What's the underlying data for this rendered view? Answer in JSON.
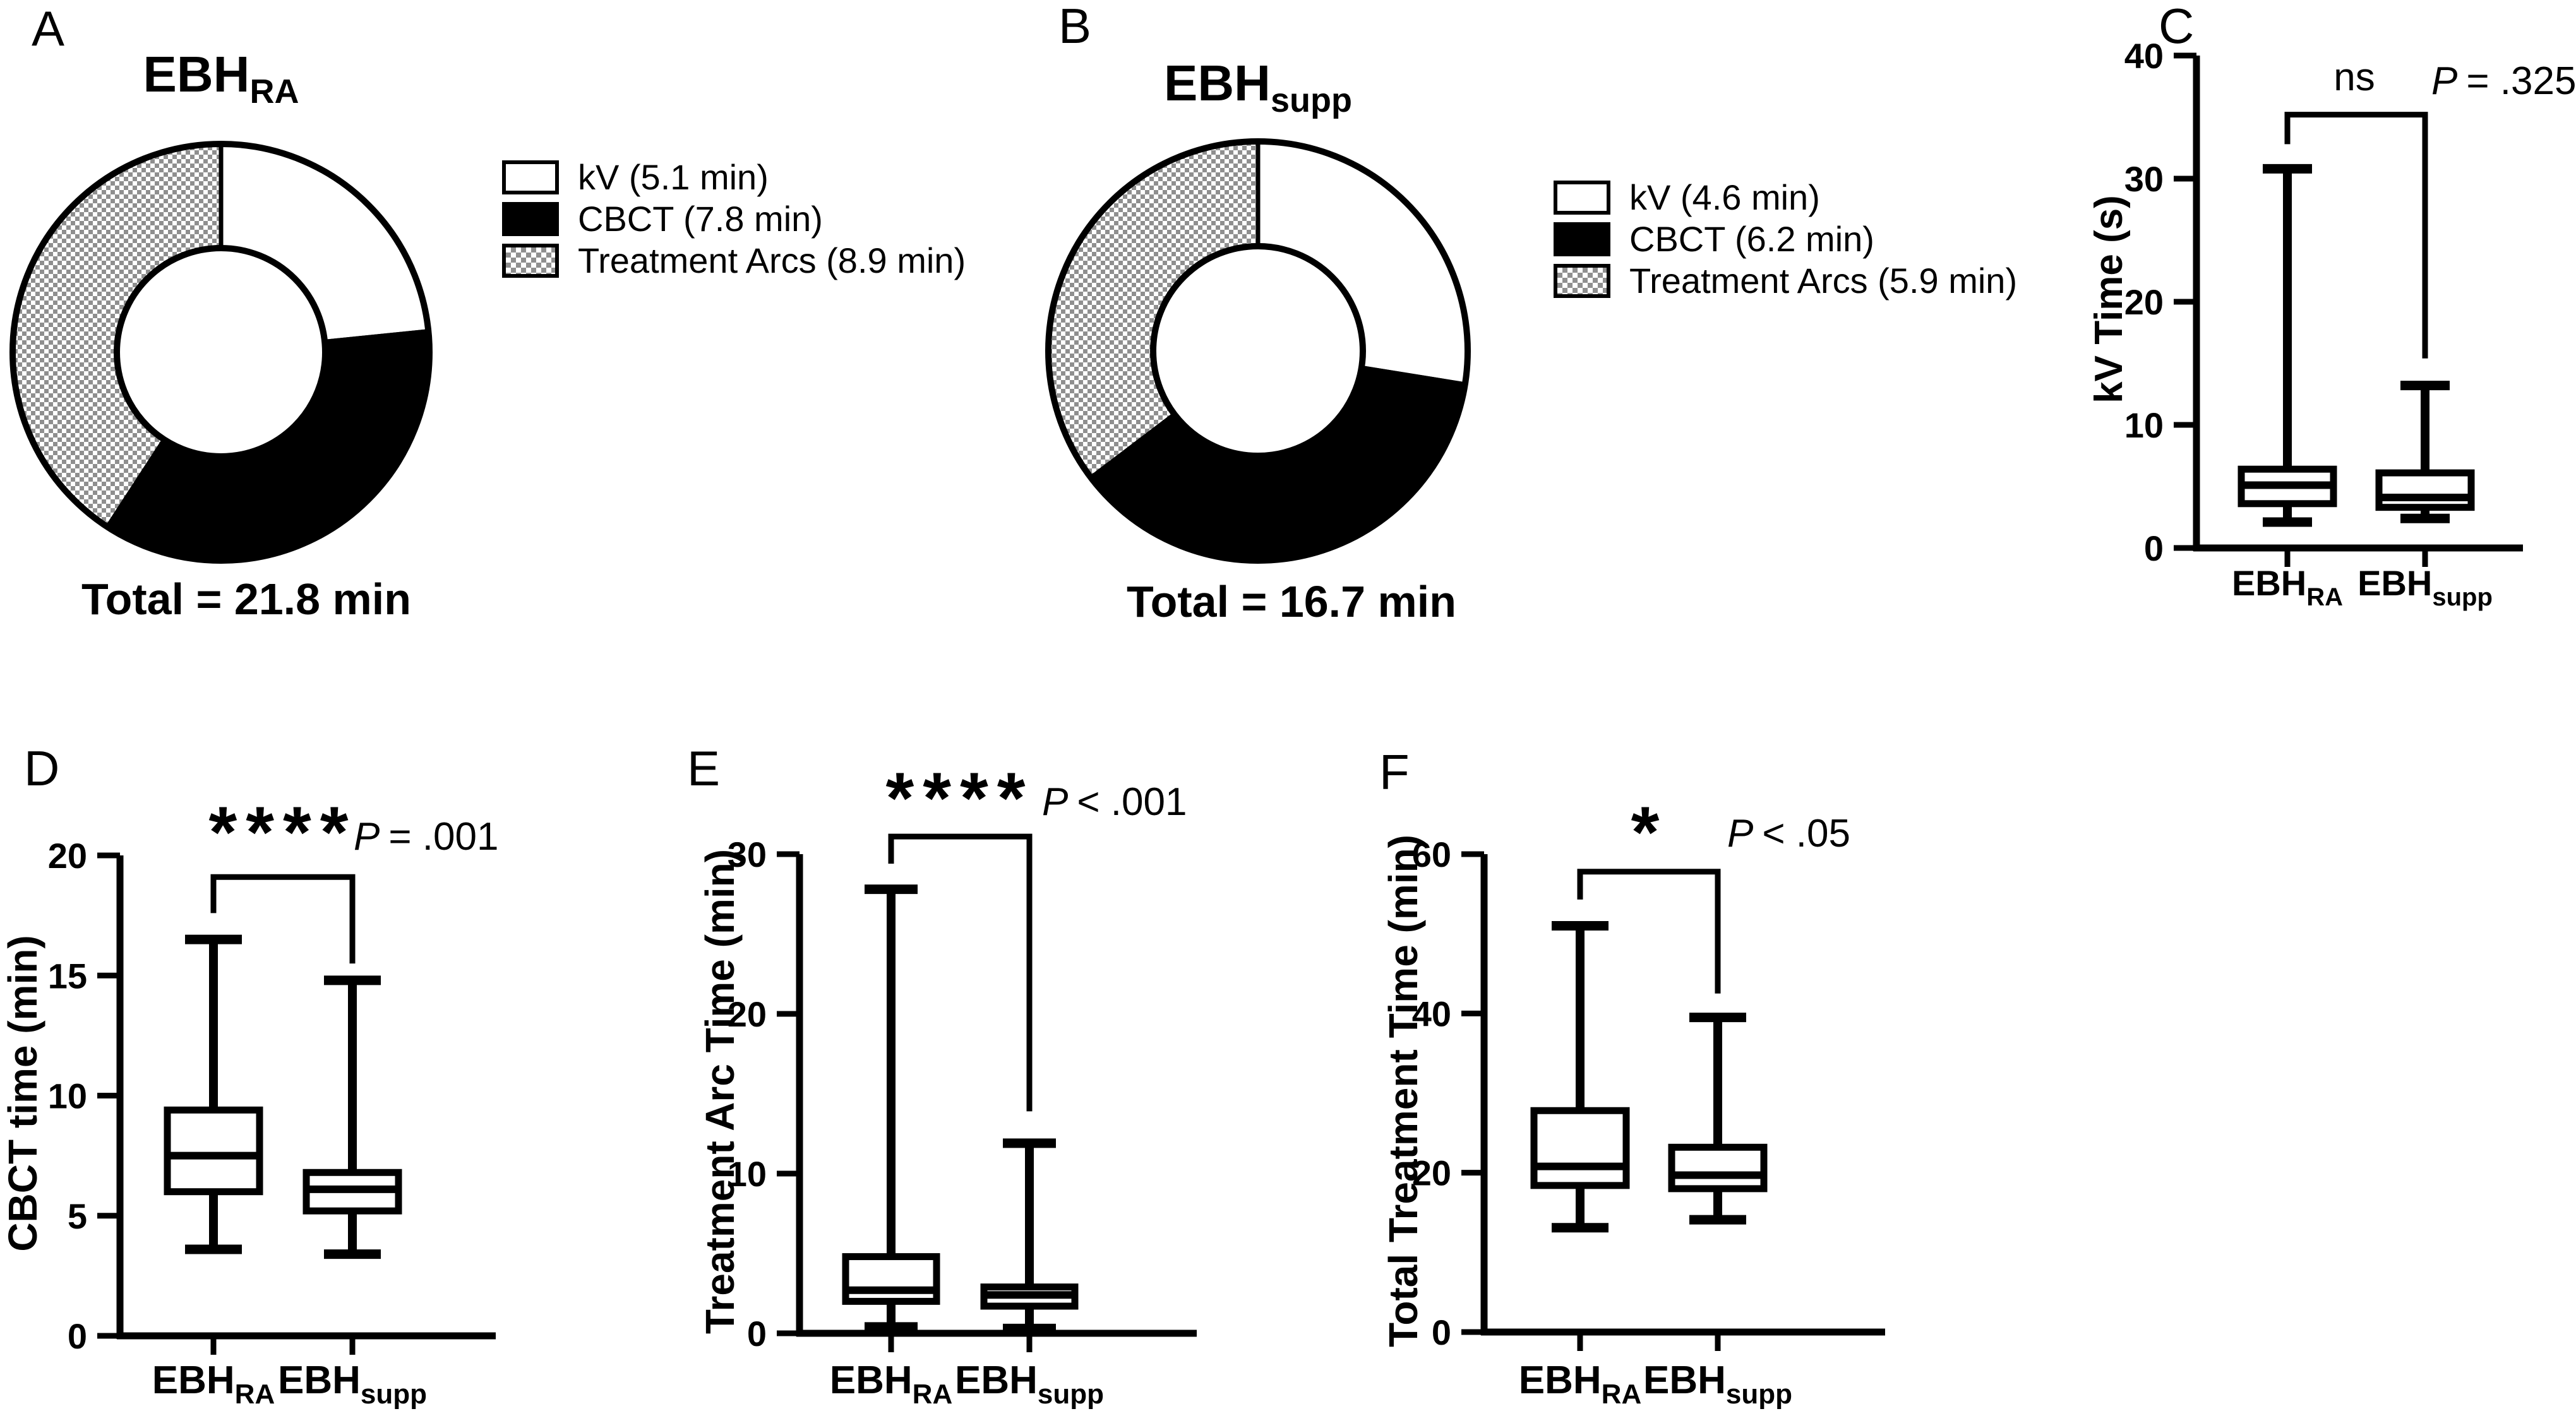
{
  "figure": {
    "background": "#ffffff",
    "ink": "#000000",
    "pattern_gray": "#8f8f8f"
  },
  "chart_data": [
    {
      "panel": "A",
      "type": "pie",
      "style": "donut",
      "title_main": "EBH",
      "title_sub": "RA",
      "start_angle_deg": 0,
      "direction": "clockwise",
      "inner_radius_ratio": 0.5,
      "slices": [
        {
          "label": "kV (5.1 min)",
          "value_min": 5.1,
          "fill": "white"
        },
        {
          "label": "CBCT (7.8 min)",
          "value_min": 7.8,
          "fill": "black"
        },
        {
          "label": "Treatment Arcs (8.9 min)",
          "value_min": 8.9,
          "fill": "checkerboard"
        }
      ],
      "total_label": "Total = 21.8 min"
    },
    {
      "panel": "B",
      "type": "pie",
      "style": "donut",
      "title_main": "EBH",
      "title_sub": "supp",
      "start_angle_deg": 0,
      "direction": "clockwise",
      "inner_radius_ratio": 0.5,
      "slices": [
        {
          "label": "kV (4.6 min)",
          "value_min": 4.6,
          "fill": "white"
        },
        {
          "label": "CBCT (6.2 min)",
          "value_min": 6.2,
          "fill": "black"
        },
        {
          "label": "Treatment Arcs (5.9 min)",
          "value_min": 5.9,
          "fill": "checkerboard"
        }
      ],
      "total_label": "Total = 16.7 min"
    },
    {
      "panel": "C",
      "type": "box",
      "ylabel": "kV Time (s)",
      "ylim": [
        0,
        40
      ],
      "yticks": [
        0,
        10,
        20,
        30,
        40
      ],
      "groups": [
        {
          "label_main": "EBH",
          "label_sub": "RA",
          "whisker_min": 2.1,
          "q1": 3.6,
          "median": 5.1,
          "q3": 6.4,
          "whisker_max": 30.8
        },
        {
          "label_main": "EBH",
          "label_sub": "supp",
          "whisker_min": 2.4,
          "q1": 3.3,
          "median": 4.1,
          "q3": 6.1,
          "whisker_max": 13.2
        }
      ],
      "significance": {
        "stars": "ns",
        "p_var": "P",
        "p_rest": "= .325",
        "bracket": {
          "left_y": 32.8,
          "top_y": 35.2,
          "right_y": 15.4
        }
      }
    },
    {
      "panel": "D",
      "type": "box",
      "ylabel": "CBCT time (min)",
      "ylim": [
        0,
        20
      ],
      "yticks": [
        0,
        5,
        10,
        15,
        20
      ],
      "groups": [
        {
          "label_main": "EBH",
          "label_sub": "RA",
          "whisker_min": 3.6,
          "q1": 6.0,
          "median": 7.5,
          "q3": 9.4,
          "whisker_max": 16.5
        },
        {
          "label_main": "EBH",
          "label_sub": "supp",
          "whisker_min": 3.4,
          "q1": 5.2,
          "median": 6.1,
          "q3": 6.8,
          "whisker_max": 14.8
        }
      ],
      "significance": {
        "stars": "****",
        "p_var": "P",
        "p_rest": "= .001",
        "bracket": {
          "left_y": 17.6,
          "top_y": 19.1,
          "right_y": 15.5
        }
      }
    },
    {
      "panel": "E",
      "type": "box",
      "ylabel": "Treatment Arc Time (min)",
      "ylim": [
        0,
        30
      ],
      "yticks": [
        0,
        10,
        20,
        30
      ],
      "groups": [
        {
          "label_main": "EBH",
          "label_sub": "RA",
          "whisker_min": 0.4,
          "q1": 2.0,
          "median": 2.7,
          "q3": 4.8,
          "whisker_max": 27.8
        },
        {
          "label_main": "EBH",
          "label_sub": "supp",
          "whisker_min": 0.3,
          "q1": 1.7,
          "median": 2.4,
          "q3": 2.9,
          "whisker_max": 11.9
        }
      ],
      "significance": {
        "stars": "****",
        "p_var": "P",
        "p_rest": "< .001",
        "bracket": {
          "left_y": 29.4,
          "top_y": 31.1,
          "right_y": 13.9
        }
      }
    },
    {
      "panel": "F",
      "type": "box",
      "ylabel": "Total Treatment Time (min)",
      "ylim": [
        0,
        60
      ],
      "yticks": [
        0,
        20,
        40,
        60
      ],
      "groups": [
        {
          "label_main": "EBH",
          "label_sub": "RA",
          "whisker_min": 13.1,
          "q1": 18.4,
          "median": 20.8,
          "q3": 27.8,
          "whisker_max": 51.0
        },
        {
          "label_main": "EBH",
          "label_sub": "supp",
          "whisker_min": 14.1,
          "q1": 18.0,
          "median": 19.7,
          "q3": 23.2,
          "whisker_max": 39.5
        }
      ],
      "significance": {
        "stars": "*",
        "p_var": "P",
        "p_rest": "< .05",
        "bracket": {
          "left_y": 54.3,
          "top_y": 57.8,
          "right_y": 42.5
        }
      }
    }
  ]
}
